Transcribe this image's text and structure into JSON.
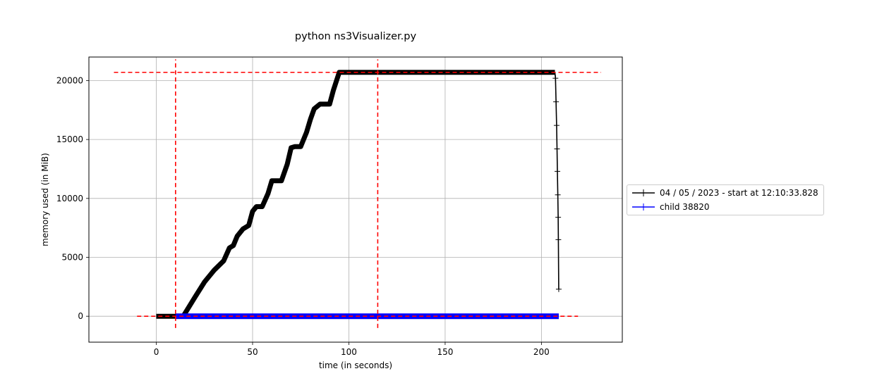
{
  "chart_data": {
    "type": "line",
    "title": "python ns3Visualizer.py",
    "xlabel": "time (in seconds)",
    "ylabel": "memory used (in MiB)",
    "xlim": [
      -35,
      242
    ],
    "ylim": [
      -2200,
      22000
    ],
    "xticks": [
      0,
      50,
      100,
      150,
      200
    ],
    "yticks": [
      0,
      5000,
      10000,
      15000,
      20000
    ],
    "grid": true,
    "legend_position": "right",
    "series": [
      {
        "name": "04 / 05 / 2023 - start at 12:10:33.828",
        "color": "#000000",
        "marker": "+",
        "x": [
          0,
          14,
          20,
          25,
          30,
          35,
          38,
          40,
          42,
          45,
          48,
          50,
          52,
          55,
          58,
          60,
          62,
          65,
          68,
          70,
          72,
          75,
          78,
          80,
          82,
          85,
          88,
          90,
          92,
          95,
          98,
          100,
          105,
          110,
          120,
          130,
          140,
          150,
          160,
          170,
          180,
          190,
          192,
          200,
          207,
          207.3,
          207.6,
          207.9,
          208.1,
          208.3,
          208.5,
          208.7,
          208.8,
          209
        ],
        "y": [
          0,
          0,
          1600,
          2900,
          3900,
          4700,
          5800,
          6000,
          6800,
          7400,
          7700,
          8900,
          9300,
          9300,
          10400,
          11500,
          11500,
          11500,
          12900,
          14300,
          14400,
          14400,
          15600,
          16700,
          17600,
          18000,
          18000,
          18000,
          19200,
          20700,
          20700,
          20700,
          20700,
          20700,
          20700,
          20700,
          20700,
          20700,
          20700,
          20700,
          20700,
          20700,
          20700,
          20700,
          20700,
          20200,
          18200,
          16200,
          14200,
          12300,
          10300,
          8400,
          6500,
          2300
        ]
      },
      {
        "name": "child 38820",
        "color": "#0000ff",
        "marker": "+",
        "x": [
          10,
          50,
          100,
          150,
          209
        ],
        "y": [
          0,
          0,
          0,
          0,
          0
        ]
      }
    ],
    "reference_lines": [
      {
        "orientation": "horizontal",
        "value": 20700,
        "from": -22,
        "to": 231,
        "color": "#ff0000",
        "style": "dashed"
      },
      {
        "orientation": "horizontal",
        "value": 0,
        "from": -10,
        "to": 219,
        "color": "#ff0000",
        "style": "dashed"
      },
      {
        "orientation": "vertical",
        "value": 10,
        "from": -1000,
        "to": 21800,
        "color": "#ff0000",
        "style": "dashed"
      },
      {
        "orientation": "vertical",
        "value": 115,
        "from": -1000,
        "to": 21800,
        "color": "#ff0000",
        "style": "dashed"
      }
    ]
  }
}
